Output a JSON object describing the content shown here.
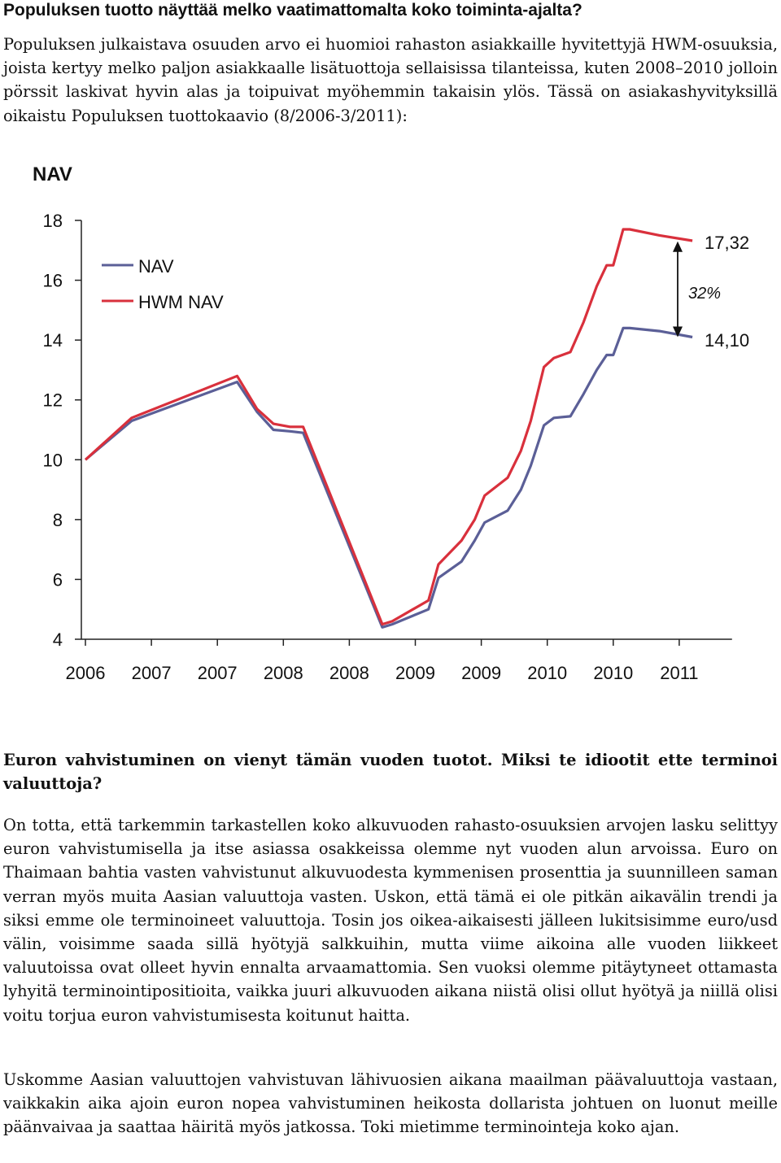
{
  "top_heading": "Populuksen tuotto näyttää melko vaatimattomalta koko toiminta-ajalta?",
  "intro_paragraph": "Populuksen julkaistava osuuden arvo ei huomioi rahaston asiakkaille hyvitettyjä HWM-osuuksia, joista kertyy melko paljon asiakkaalle lisätuottoja sellaisissa tilanteissa, kuten 2008–2010 jolloin pörssit laskivat hyvin alas ja toipuivat myöhemmin takaisin ylös. Tässä on asiakashyvityksillä oikaistu Populuksen tuottokaavio (8/2006-3/2011):",
  "chart_data": {
    "type": "line",
    "title": "NAV",
    "xlabel": "",
    "ylabel": "",
    "ylim": [
      4,
      18
    ],
    "yticks": [
      "18",
      "16",
      "14",
      "12",
      "10",
      "8",
      "6",
      "4"
    ],
    "xtick_labels": [
      "2006",
      "2007",
      "2007",
      "2008",
      "2008",
      "2009",
      "2009",
      "2010",
      "2010",
      "2011"
    ],
    "x": [
      0,
      0.7,
      2.3,
      2.6,
      2.85,
      3.1,
      3.3,
      4.5,
      4.65,
      5.2,
      5.35,
      5.7,
      5.9,
      6.05,
      6.4,
      6.6,
      6.75,
      6.95,
      7.1,
      7.35,
      7.55,
      7.75,
      7.9,
      8.0,
      8.15,
      8.25,
      8.7,
      9.2
    ],
    "series": [
      {
        "name": "NAV",
        "color": "#5b5f97",
        "values": [
          10.0,
          11.3,
          12.6,
          11.6,
          11.0,
          10.95,
          10.9,
          4.4,
          4.5,
          5.0,
          6.05,
          6.6,
          7.3,
          7.9,
          8.3,
          9.0,
          9.8,
          11.15,
          11.4,
          11.45,
          12.2,
          13.0,
          13.5,
          13.5,
          14.4,
          14.4,
          14.3,
          14.1
        ]
      },
      {
        "name": "HWM NAV",
        "color": "#d9303c",
        "values": [
          10.0,
          11.4,
          12.8,
          11.7,
          11.2,
          11.1,
          11.1,
          4.5,
          4.6,
          5.3,
          6.5,
          7.3,
          8.0,
          8.8,
          9.4,
          10.3,
          11.3,
          13.1,
          13.4,
          13.6,
          14.6,
          15.8,
          16.5,
          16.5,
          17.7,
          17.7,
          17.5,
          17.32
        ]
      }
    ],
    "legend": "top-left",
    "grid": false,
    "annotations": {
      "hwm_end_label": "17,32",
      "nav_end_label": "14,10",
      "difference_label": "32%"
    }
  },
  "section_heading": "Euron vahvistuminen on vienyt tämän vuoden tuotot. Miksi te idiootit ette terminoi valuuttoja?",
  "body_paragraph_1": "On totta, että tarkemmin tarkastellen koko alkuvuoden rahasto-osuuksien arvojen lasku selittyy euron vahvistumisella ja itse asiassa osakkeissa olemme nyt vuoden alun arvoissa. Euro on Thaimaan bahtia vasten vahvistunut alkuvuodesta kymmenisen prosenttia ja suunnilleen saman verran myös muita Aasian valuuttoja vasten. Uskon, että tämä ei ole pitkän aikavälin trendi ja siksi emme ole terminoineet valuuttoja. Tosin jos oikea-aikaisesti jälleen lukitsisimme euro/usd välin, voisimme saada sillä hyötyjä salkkuihin, mutta viime aikoina alle vuoden liikkeet valuutoissa ovat olleet hyvin ennalta arvaamattomia. Sen vuoksi olemme pitäytyneet ottamasta lyhyitä terminointipositioita, vaikka juuri alkuvuoden aikana niistä olisi ollut hyötyä ja niillä olisi voitu torjua euron vahvistumisesta koitunut haitta.",
  "body_paragraph_2": "Uskomme Aasian valuuttojen vahvistuvan lähivuosien aikana maailman päävaluuttoja vastaan, vaikkakin aika ajoin euron nopea vahvistuminen heikosta dollarista johtuen on luonut meille päänvaivaa ja saattaa häiritä myös jatkossa. Toki mietimme terminointeja koko ajan."
}
